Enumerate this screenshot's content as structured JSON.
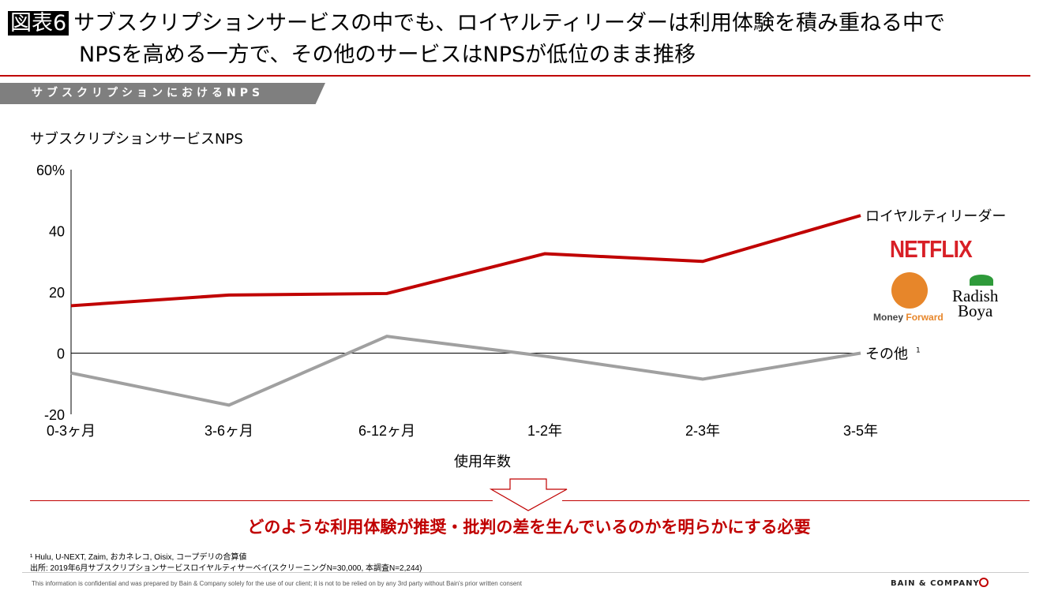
{
  "header": {
    "badge": "図表6",
    "line1": "サブスクリプションサービスの中でも、ロイヤルティリーダーは利用体験を積み重ねる中で",
    "line2": "NPSを高める一方で、その他のサービスはNPSが低位のまま推移"
  },
  "section_label": "サブスクリプションにおけるNPS",
  "chart_data": {
    "type": "line",
    "title": "サブスクリプションサービスNPS",
    "xlabel": "使用年数",
    "ylabel": "",
    "categories": [
      "0-3ヶ月",
      "3-6ヶ月",
      "6-12ヶ月",
      "1-2年",
      "2-3年",
      "3-5年"
    ],
    "ylim": [
      -20,
      60
    ],
    "yticks": [
      60,
      40,
      20,
      0,
      -20
    ],
    "ytick_labels": [
      "60%",
      "40",
      "20",
      "0",
      "-20"
    ],
    "series": [
      {
        "name": "ロイヤルティリーダー",
        "color": "#c00000",
        "values": [
          15.5,
          19,
          19.5,
          32.5,
          30,
          45
        ]
      },
      {
        "name": "その他",
        "footnote_mark": "1",
        "color": "#a0a0a0",
        "values": [
          -6.5,
          -17,
          5.5,
          -1,
          -8.5,
          0
        ]
      }
    ],
    "grid": false,
    "legend": "right"
  },
  "logos": {
    "netflix": "NETFLIX",
    "money_forward_1": "Money",
    "money_forward_2": "Forward",
    "radish_boya_1": "Radish",
    "radish_boya_2": "Boya"
  },
  "conclusion": "どのような利用体験が推奨・批判の差を生んでいるのかを明らかにする必要",
  "footnotes": {
    "note1": "¹ Hulu, U-NEXT, Zaim, おカネレコ, Oisix, コープデリの合算値",
    "source": "出所:  2019年6月サブスクリプションサービスロイヤルティサーベイ(スクリーニングN=30,000, 本調査N=2,244)"
  },
  "confidential": "This information is confidential and was prepared by Bain & Company solely for the use of our client; it is not to be relied on by any 3rd party without Bain's prior written consent",
  "brand": "BAIN & COMPANY"
}
